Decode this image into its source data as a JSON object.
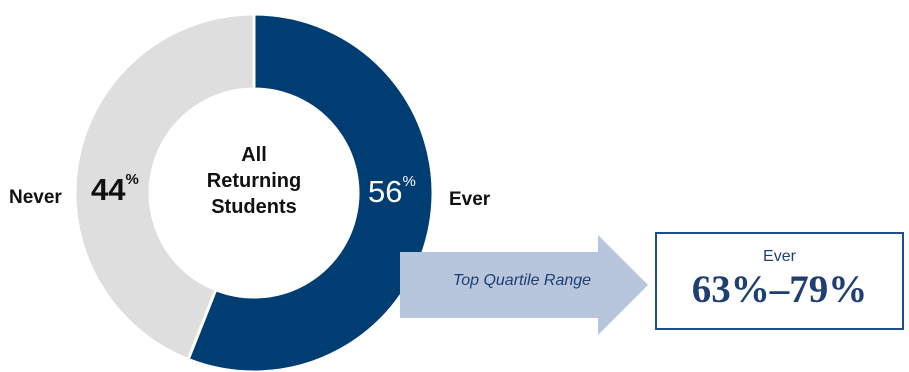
{
  "chart_data": {
    "type": "pie",
    "style": "donut",
    "center_label": [
      "All",
      "Returning",
      "Students"
    ],
    "slices": [
      {
        "label": "Ever",
        "value": 56,
        "color": "#003d73"
      },
      {
        "label": "Never",
        "value": 44,
        "color": "#dedede"
      }
    ],
    "value_suffix": "%"
  },
  "callout": {
    "arrow_text": "Top Quartile Range",
    "box_label": "Ever",
    "box_value": "63%–79%",
    "arrow_color": "#b7c5dd",
    "box_border_color": "#1f4e8c"
  }
}
